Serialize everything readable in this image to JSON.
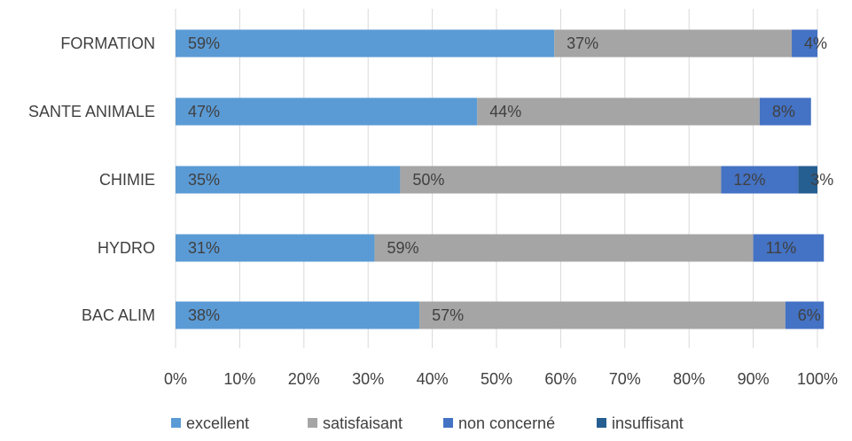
{
  "chart_data": {
    "type": "bar",
    "orientation": "horizontal",
    "stacked": "percent",
    "title": "",
    "xlabel": "",
    "ylabel": "",
    "xlim": [
      0,
      100
    ],
    "x_ticks": [
      "0%",
      "10%",
      "20%",
      "30%",
      "40%",
      "50%",
      "60%",
      "70%",
      "80%",
      "90%",
      "100%"
    ],
    "grid": true,
    "legend_position": "bottom",
    "categories": [
      "FORMATION",
      "SANTE ANIMALE",
      "CHIMIE",
      "HYDRO",
      "BAC ALIM"
    ],
    "series": [
      {
        "name": "excellent",
        "color": "#5B9BD5",
        "values": [
          59,
          47,
          35,
          31,
          38
        ],
        "labels": [
          "59%",
          "47%",
          "35%",
          "31%",
          "38%"
        ]
      },
      {
        "name": "satisfaisant",
        "color": "#A5A5A5",
        "values": [
          37,
          44,
          50,
          59,
          57
        ],
        "labels": [
          "37%",
          "44%",
          "50%",
          "59%",
          "57%"
        ]
      },
      {
        "name": "non concerné",
        "color": "#4472C4",
        "values": [
          4,
          8,
          12,
          11,
          6
        ],
        "labels": [
          "4%",
          "8%",
          "12%",
          "11%",
          "6%"
        ]
      },
      {
        "name": "insuffisant",
        "color": "#255E91",
        "values": [
          0,
          0,
          3,
          0,
          0
        ],
        "labels": [
          "",
          "",
          "3%",
          "",
          ""
        ]
      }
    ]
  }
}
